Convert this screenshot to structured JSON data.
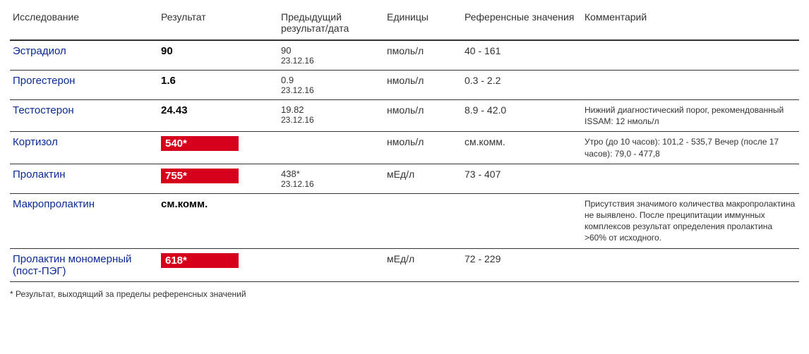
{
  "headers": {
    "test": "Исследование",
    "result": "Результат",
    "prev": "Предыдущий результат/дата",
    "units": "Единицы",
    "ref": "Референсные значения",
    "comment": "Комментарий"
  },
  "rows": [
    {
      "test": "Эстрадиол",
      "result": "90",
      "flag": false,
      "prev_value": "90",
      "prev_date": "23.12.16",
      "units": "пмоль/л",
      "ref": "40 - 161",
      "comment": ""
    },
    {
      "test": "Прогестерон",
      "result": "1.6",
      "flag": false,
      "prev_value": "0.9",
      "prev_date": "23.12.16",
      "units": "нмоль/л",
      "ref": "0.3 - 2.2",
      "comment": ""
    },
    {
      "test": "Тестостерон",
      "result": "24.43",
      "flag": false,
      "prev_value": "19.82",
      "prev_date": "23.12.16",
      "units": "нмоль/л",
      "ref": "8.9 - 42.0",
      "comment": "Нижний диагностический порог, рекомендованный ISSAM: 12 нмоль/л"
    },
    {
      "test": "Кортизол",
      "result": "540*",
      "flag": true,
      "prev_value": "",
      "prev_date": "",
      "units": "нмоль/л",
      "ref": "см.комм.",
      "comment": "Утро (до 10 часов): 101,2 - 535,7 Вечер (после 17 часов): 79,0 - 477,8"
    },
    {
      "test": "Пролактин",
      "result": "755*",
      "flag": true,
      "prev_value": "438*",
      "prev_date": "23.12.16",
      "units": "мЕд/л",
      "ref": "73 - 407",
      "comment": ""
    },
    {
      "test": "Макропролактин",
      "result": "см.комм.",
      "flag": false,
      "prev_value": "",
      "prev_date": "",
      "units": "",
      "ref": "",
      "comment": "Присутствия значимого количества макропролактина не выявлено. После преципитации иммунных комплексов результат определения пролактина >60% от исходного."
    },
    {
      "test": "Пролактин мономерный (пост-ПЭГ)",
      "result": "618*",
      "flag": true,
      "prev_value": "",
      "prev_date": "",
      "units": "мЕд/л",
      "ref": "72 - 229",
      "comment": ""
    }
  ],
  "footnote": "* Результат, выходящий за пределы референсных значений",
  "colors": {
    "test_name": "#0a2b92",
    "flag_bg": "#d6001c",
    "flag_text": "#ffffff",
    "border": "#333333",
    "text": "#333333",
    "background": "#ffffff"
  }
}
